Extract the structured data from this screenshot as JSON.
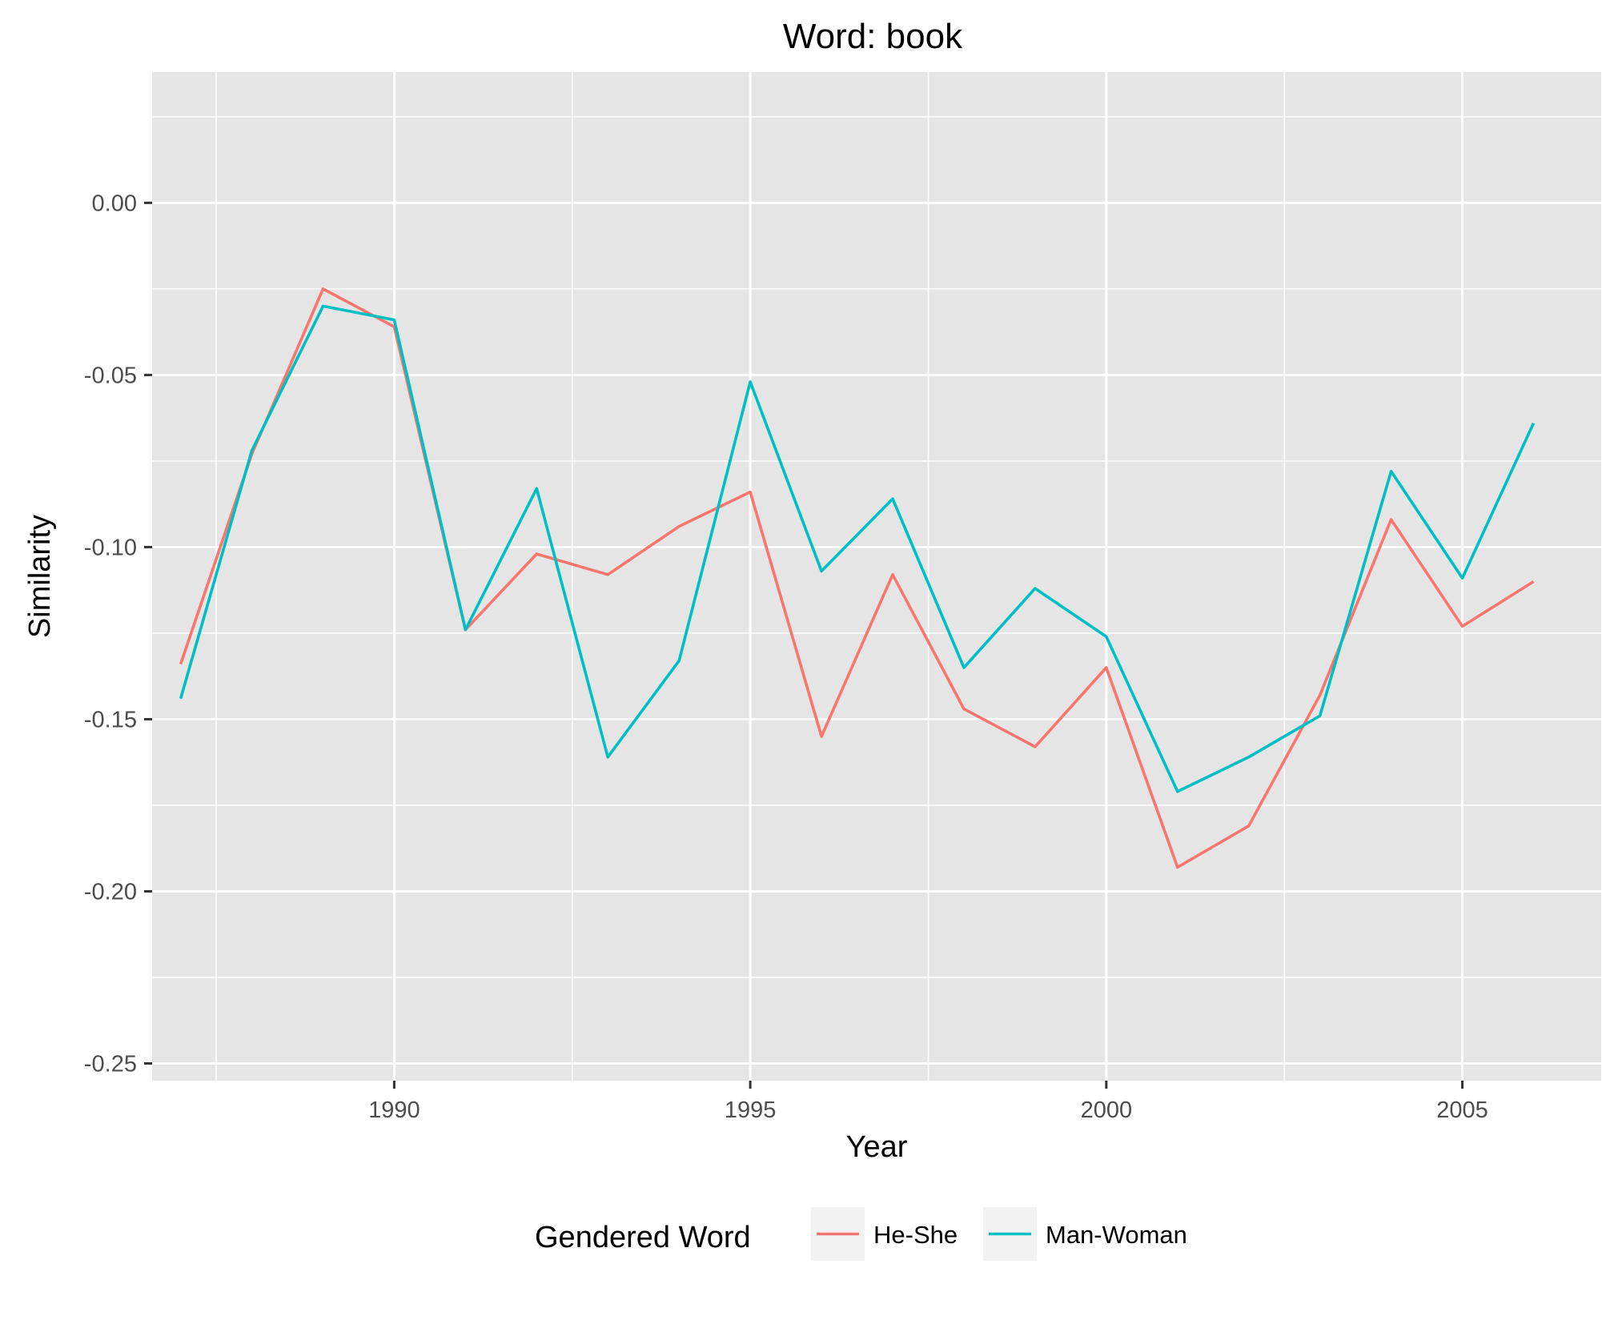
{
  "chart_data": {
    "type": "line",
    "title": "Word: book",
    "xlabel": "Year",
    "ylabel": "Similarity",
    "x": [
      1987,
      1988,
      1989,
      1990,
      1991,
      1992,
      1993,
      1994,
      1995,
      1996,
      1997,
      1998,
      1999,
      2000,
      2001,
      2002,
      2003,
      2004,
      2005,
      2006
    ],
    "xlim": [
      1986.6,
      2006.95
    ],
    "ylim": [
      -0.255,
      0.038
    ],
    "x_ticks": [
      1990,
      1995,
      2000,
      2005
    ],
    "x_tick_labels": [
      "1990",
      "1995",
      "2000",
      "2005"
    ],
    "y_ticks": [
      0.0,
      -0.05,
      -0.1,
      -0.15,
      -0.2,
      -0.25
    ],
    "y_tick_labels": [
      "0.00",
      "-0.05",
      "-0.10",
      "-0.15",
      "-0.20",
      "-0.25"
    ],
    "grid": true,
    "legend_position": "bottom",
    "legend_title": "Gendered Word",
    "series": [
      {
        "name": "He-She",
        "color": "#F8766D",
        "values": [
          -0.134,
          -0.073,
          -0.025,
          -0.036,
          -0.124,
          -0.102,
          -0.108,
          -0.094,
          -0.084,
          -0.155,
          -0.108,
          -0.147,
          -0.158,
          -0.135,
          -0.193,
          -0.181,
          -0.143,
          -0.092,
          -0.123,
          -0.11
        ]
      },
      {
        "name": "Man-Woman",
        "color": "#00BFC4",
        "values": [
          -0.144,
          -0.072,
          -0.03,
          -0.034,
          -0.124,
          -0.083,
          -0.161,
          -0.133,
          -0.052,
          -0.107,
          -0.086,
          -0.135,
          -0.112,
          -0.126,
          -0.171,
          -0.161,
          -0.149,
          -0.078,
          -0.109,
          -0.064
        ]
      }
    ]
  },
  "colors": {
    "panel_background": "#E5E5E5",
    "grid_major": "#FFFFFF",
    "tick_mark": "#333333"
  }
}
